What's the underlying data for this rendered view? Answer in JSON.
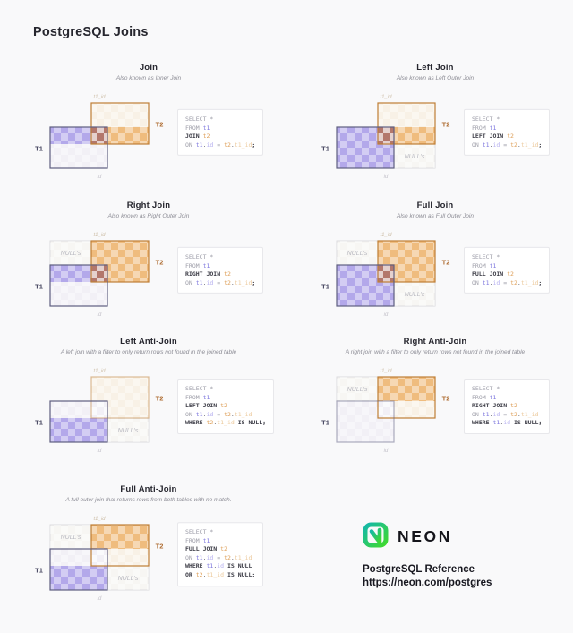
{
  "page": {
    "title": "PostgreSQL Joins",
    "background": "#f9f9fa"
  },
  "colors": {
    "purple_fill": "#b3a8ea",
    "orange_fill": "#efbc7e",
    "overlap_fill": "#b3776c",
    "t1_stroke": "#5e5e80",
    "t2_stroke": "#bf7e35",
    "t1_base": "#f2f0f6",
    "t2_base": "#f8f1e6",
    "ghost_fill": "#f7f6f3",
    "ghost_stroke": "#dcdcdf",
    "nulls_text": "#b9b9c1",
    "t1_id_label": "#cfc0aa",
    "id_label": "#c5c3cb",
    "t1_label": "#45455f",
    "t2_label": "#b06f35",
    "code_muted": "#9d9da8",
    "code_keyword": "#3b3b45",
    "code_t1": "#7e77de",
    "code_t1_light": "#b5afef",
    "code_t2": "#dd9c53",
    "code_t2_light": "#ecca9d"
  },
  "diagram_labels": {
    "t1": "T1",
    "t2": "T2",
    "t1_id": "t1_id",
    "id": "id",
    "nulls": "NULL's"
  },
  "diagrams": [
    {
      "id": "join",
      "title": "Join",
      "subtitle": "Also known as Inner Join",
      "regions": {
        "t1": "match",
        "t2": "match",
        "overlap": true,
        "ghosts": []
      },
      "code": [
        [
          [
            "SELECT *",
            "m"
          ]
        ],
        [
          [
            "FROM ",
            "m"
          ],
          [
            "t1",
            "a"
          ]
        ],
        [
          [
            "JOIN ",
            "k"
          ],
          [
            "t2",
            "b"
          ]
        ],
        [
          [
            "ON ",
            "m"
          ],
          [
            "t1",
            "a"
          ],
          [
            ".",
            "d"
          ],
          [
            "id",
            "al"
          ],
          [
            " = ",
            "m"
          ],
          [
            "t2",
            "b"
          ],
          [
            ".",
            "d"
          ],
          [
            "t1_id",
            "bl"
          ],
          [
            ";",
            "k"
          ]
        ]
      ]
    },
    {
      "id": "left-join",
      "title": "Left Join",
      "subtitle": "Also known as Left Outer Join",
      "regions": {
        "t1": "full",
        "t2": "match",
        "overlap": true,
        "ghosts": [
          "br"
        ]
      },
      "code": [
        [
          [
            "SELECT *",
            "m"
          ]
        ],
        [
          [
            "FROM ",
            "m"
          ],
          [
            "t1",
            "a"
          ]
        ],
        [
          [
            "LEFT JOIN ",
            "k"
          ],
          [
            "t2",
            "b"
          ]
        ],
        [
          [
            "ON ",
            "m"
          ],
          [
            "t1",
            "a"
          ],
          [
            ".",
            "d"
          ],
          [
            "id",
            "al"
          ],
          [
            " = ",
            "m"
          ],
          [
            "t2",
            "b"
          ],
          [
            ".",
            "d"
          ],
          [
            "t1_id",
            "bl"
          ],
          [
            ";",
            "k"
          ]
        ]
      ]
    },
    {
      "id": "right-join",
      "title": "Right Join",
      "subtitle": "Also known as Right Outer Join",
      "regions": {
        "t1": "match",
        "t2": "full",
        "overlap": true,
        "ghosts": [
          "tl"
        ]
      },
      "code": [
        [
          [
            "SELECT *",
            "m"
          ]
        ],
        [
          [
            "FROM ",
            "m"
          ],
          [
            "t1",
            "a"
          ]
        ],
        [
          [
            "RIGHT JOIN ",
            "k"
          ],
          [
            "t2",
            "b"
          ]
        ],
        [
          [
            "ON ",
            "m"
          ],
          [
            "t1",
            "a"
          ],
          [
            ".",
            "d"
          ],
          [
            "id",
            "al"
          ],
          [
            " = ",
            "m"
          ],
          [
            "t2",
            "b"
          ],
          [
            ".",
            "d"
          ],
          [
            "t1_id",
            "bl"
          ],
          [
            ";",
            "k"
          ]
        ]
      ]
    },
    {
      "id": "full-join",
      "title": "Full Join",
      "subtitle": "Also known as Full Outer Join",
      "regions": {
        "t1": "full",
        "t2": "full",
        "overlap": true,
        "ghosts": [
          "tl",
          "br"
        ]
      },
      "code": [
        [
          [
            "SELECT *",
            "m"
          ]
        ],
        [
          [
            "FROM ",
            "m"
          ],
          [
            "t1",
            "a"
          ]
        ],
        [
          [
            "FULL JOIN ",
            "k"
          ],
          [
            "t2",
            "b"
          ]
        ],
        [
          [
            "ON ",
            "m"
          ],
          [
            "t1",
            "a"
          ],
          [
            ".",
            "d"
          ],
          [
            "id",
            "al"
          ],
          [
            " = ",
            "m"
          ],
          [
            "t2",
            "b"
          ],
          [
            ".",
            "d"
          ],
          [
            "t1_id",
            "bl"
          ],
          [
            ";",
            "k"
          ]
        ]
      ]
    },
    {
      "id": "left-anti-join",
      "title": "Left Anti-Join",
      "subtitle": "A left join with a filter to only return rows not found in the joined table",
      "regions": {
        "t1": "unmatch",
        "t2": "none",
        "overlap": false,
        "ghosts": [
          "br"
        ]
      },
      "code": [
        [
          [
            "SELECT *",
            "m"
          ]
        ],
        [
          [
            "FROM ",
            "m"
          ],
          [
            "t1",
            "a"
          ]
        ],
        [
          [
            "LEFT JOIN ",
            "k"
          ],
          [
            "t2",
            "b"
          ]
        ],
        [
          [
            "ON ",
            "m"
          ],
          [
            "t1",
            "a"
          ],
          [
            ".",
            "d"
          ],
          [
            "id",
            "al"
          ],
          [
            " = ",
            "m"
          ],
          [
            "t2",
            "b"
          ],
          [
            ".",
            "d"
          ],
          [
            "t1_id",
            "bl"
          ]
        ],
        [
          [
            "WHERE ",
            "k"
          ],
          [
            "t2",
            "b"
          ],
          [
            ".",
            "d"
          ],
          [
            "t1_id",
            "bl"
          ],
          [
            " IS NULL;",
            "k"
          ]
        ]
      ]
    },
    {
      "id": "right-anti-join",
      "title": "Right Anti-Join",
      "subtitle": "A right join with a filter to only return rows not found in the joined table",
      "regions": {
        "t1": "none",
        "t2": "unmatch",
        "overlap": false,
        "ghosts": [
          "tl"
        ]
      },
      "code": [
        [
          [
            "SELECT *",
            "m"
          ]
        ],
        [
          [
            "FROM ",
            "m"
          ],
          [
            "t1",
            "a"
          ]
        ],
        [
          [
            "RIGHT JOIN ",
            "k"
          ],
          [
            "t2",
            "b"
          ]
        ],
        [
          [
            "ON ",
            "m"
          ],
          [
            "t1",
            "a"
          ],
          [
            ".",
            "d"
          ],
          [
            "id",
            "al"
          ],
          [
            " = ",
            "m"
          ],
          [
            "t2",
            "b"
          ],
          [
            ".",
            "d"
          ],
          [
            "t1_id",
            "bl"
          ]
        ],
        [
          [
            "WHERE ",
            "k"
          ],
          [
            "t1",
            "a"
          ],
          [
            ".",
            "d"
          ],
          [
            "id",
            "al"
          ],
          [
            " IS NULL;",
            "k"
          ]
        ]
      ]
    },
    {
      "id": "full-anti-join",
      "title": "Full Anti-Join",
      "subtitle": "A full outer join that returns rows from both tables with no match.",
      "regions": {
        "t1": "unmatch",
        "t2": "unmatch",
        "overlap": false,
        "ghosts": [
          "tl",
          "br"
        ]
      },
      "code": [
        [
          [
            "SELECT *",
            "m"
          ]
        ],
        [
          [
            "FROM ",
            "m"
          ],
          [
            "t1",
            "a"
          ]
        ],
        [
          [
            "FULL JOIN ",
            "k"
          ],
          [
            "t2",
            "b"
          ]
        ],
        [
          [
            "ON ",
            "m"
          ],
          [
            "t1",
            "a"
          ],
          [
            ".",
            "d"
          ],
          [
            "id",
            "al"
          ],
          [
            " = ",
            "m"
          ],
          [
            "t2",
            "b"
          ],
          [
            ".",
            "d"
          ],
          [
            "t1_id",
            "bl"
          ]
        ],
        [
          [
            "WHERE ",
            "k"
          ],
          [
            "t1",
            "a"
          ],
          [
            ".",
            "d"
          ],
          [
            "id",
            "al"
          ],
          [
            " IS NULL",
            "k"
          ]
        ],
        [
          [
            "OR ",
            "k"
          ],
          [
            "t2",
            "b"
          ],
          [
            ".",
            "d"
          ],
          [
            "t1_id",
            "bl"
          ],
          [
            " IS NULL;",
            "k"
          ]
        ]
      ]
    }
  ],
  "footer": {
    "brand": "NEON",
    "line1": "PostgreSQL Reference",
    "line2": "https://neon.com/postgres",
    "logo_teal": "#14b8a8",
    "logo_green": "#3fd92e"
  }
}
